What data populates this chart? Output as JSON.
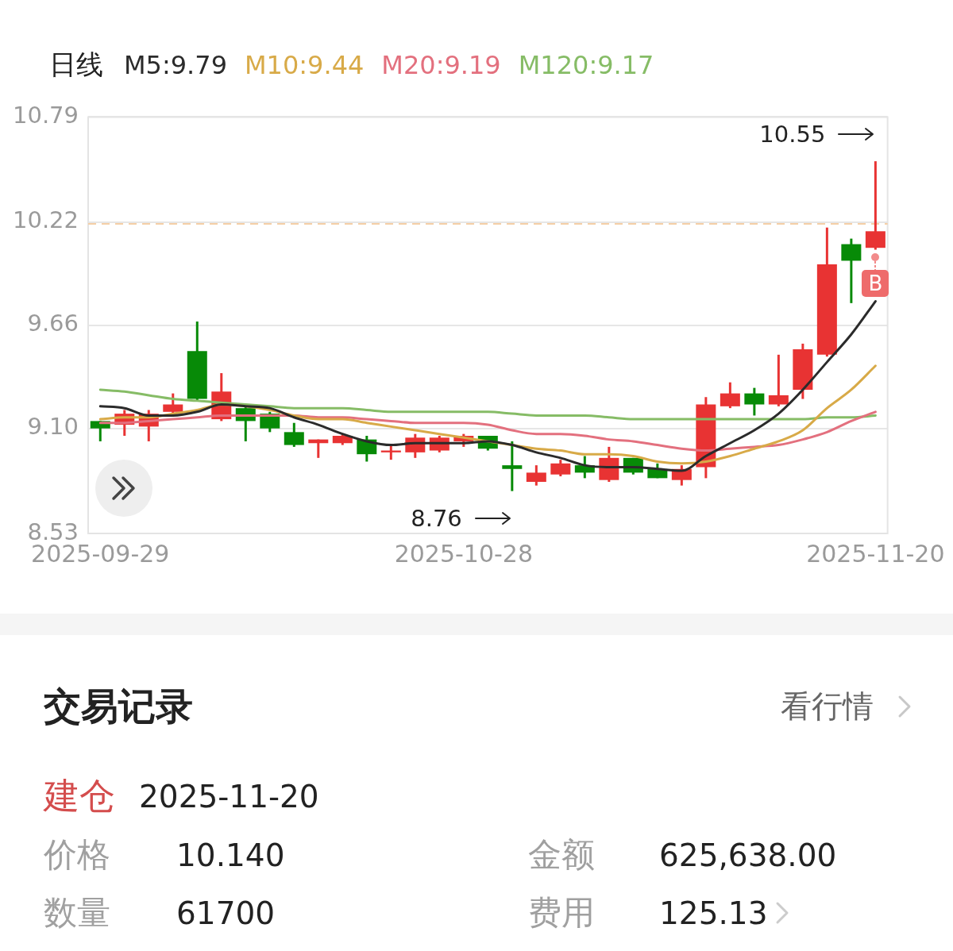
{
  "chart_data": {
    "type": "candlestick",
    "legend_title": "日线",
    "categories": [
      "2025-09-29",
      null,
      null,
      null,
      null,
      null,
      null,
      null,
      null,
      null,
      null,
      null,
      null,
      null,
      null,
      "2025-10-28",
      null,
      null,
      null,
      null,
      null,
      null,
      null,
      null,
      null,
      null,
      null,
      null,
      null,
      null,
      null,
      null,
      "2025-11-20"
    ],
    "ohlc": [
      [
        9.14,
        9.14,
        9.03,
        9.1
      ],
      [
        9.12,
        9.2,
        9.06,
        9.18
      ],
      [
        9.11,
        9.2,
        9.03,
        9.18
      ],
      [
        9.19,
        9.29,
        9.18,
        9.23
      ],
      [
        9.52,
        9.68,
        9.25,
        9.26
      ],
      [
        9.15,
        9.4,
        9.14,
        9.3
      ],
      [
        9.21,
        9.23,
        9.03,
        9.14
      ],
      [
        9.18,
        9.19,
        9.08,
        9.1
      ],
      [
        9.08,
        9.13,
        9.0,
        9.01
      ],
      [
        9.02,
        9.04,
        8.94,
        9.04
      ],
      [
        9.02,
        9.07,
        9.01,
        9.06
      ],
      [
        9.04,
        9.06,
        8.92,
        8.96
      ],
      [
        8.97,
        9.01,
        8.93,
        8.98
      ],
      [
        8.97,
        9.07,
        8.94,
        9.05
      ],
      [
        8.98,
        9.06,
        8.97,
        9.05
      ],
      [
        9.03,
        9.07,
        9.0,
        9.06
      ],
      [
        9.06,
        9.06,
        8.98,
        8.99
      ],
      [
        8.9,
        9.03,
        8.76,
        8.88
      ],
      [
        8.81,
        8.9,
        8.79,
        8.86
      ],
      [
        8.85,
        8.93,
        8.84,
        8.91
      ],
      [
        8.9,
        8.95,
        8.83,
        8.86
      ],
      [
        8.82,
        9.0,
        8.81,
        8.94
      ],
      [
        8.94,
        8.94,
        8.85,
        8.86
      ],
      [
        8.88,
        8.91,
        8.83,
        8.83
      ],
      [
        8.82,
        8.9,
        8.79,
        8.88
      ],
      [
        8.89,
        9.27,
        8.83,
        9.23
      ],
      [
        9.22,
        9.35,
        9.21,
        9.29
      ],
      [
        9.29,
        9.32,
        9.17,
        9.23
      ],
      [
        9.23,
        9.5,
        9.22,
        9.28
      ],
      [
        9.31,
        9.56,
        9.26,
        9.53
      ],
      [
        9.5,
        10.19,
        9.49,
        9.99
      ],
      [
        10.1,
        10.13,
        9.78,
        10.01
      ],
      [
        10.08,
        10.55,
        10.07,
        10.17
      ]
    ],
    "colors": [
      "#078a07",
      "#e83333",
      "#e83333",
      "#e83333",
      "#078a07",
      "#e83333",
      "#078a07",
      "#078a07",
      "#078a07",
      "#e83333",
      "#e83333",
      "#078a07",
      "#e83333",
      "#e83333",
      "#e83333",
      "#e83333",
      "#078a07",
      "#078a07",
      "#e83333",
      "#e83333",
      "#078a07",
      "#e83333",
      "#078a07",
      "#078a07",
      "#e83333",
      "#e83333",
      "#e83333",
      "#078a07",
      "#e83333",
      "#e83333",
      "#e83333",
      "#078a07",
      "#e83333"
    ],
    "series": [
      {
        "name": "M5:9.79",
        "type": "line",
        "color": "#2b2b2b",
        "values": [
          9.22,
          9.21,
          9.17,
          9.17,
          9.19,
          9.23,
          9.22,
          9.21,
          9.16,
          9.12,
          9.07,
          9.03,
          9.01,
          9.02,
          9.02,
          9.02,
          9.03,
          9.01,
          8.97,
          8.94,
          8.9,
          8.89,
          8.89,
          8.88,
          8.87,
          8.95,
          9.02,
          9.09,
          9.18,
          9.31,
          9.46,
          9.61,
          9.79
        ]
      },
      {
        "name": "M10:9.44",
        "type": "line",
        "color": "#d8aa48",
        "values": [
          9.15,
          9.16,
          9.16,
          9.18,
          9.2,
          9.23,
          9.22,
          9.2,
          9.17,
          9.15,
          9.15,
          9.13,
          9.11,
          9.09,
          9.07,
          9.05,
          9.03,
          9.01,
          8.99,
          8.98,
          8.96,
          8.96,
          8.95,
          8.92,
          8.91,
          8.92,
          8.95,
          8.99,
          9.03,
          9.09,
          9.21,
          9.31,
          9.44
        ]
      },
      {
        "name": "M20:9.19",
        "type": "line",
        "color": "#e3707e",
        "values": [
          9.13,
          9.13,
          9.14,
          9.15,
          9.16,
          9.17,
          9.17,
          9.17,
          9.17,
          9.16,
          9.16,
          9.15,
          9.14,
          9.13,
          9.13,
          9.13,
          9.12,
          9.09,
          9.07,
          9.07,
          9.06,
          9.04,
          9.03,
          9.01,
          8.99,
          8.98,
          8.99,
          9.0,
          9.01,
          9.04,
          9.08,
          9.14,
          9.19
        ]
      },
      {
        "name": "M120:9.17",
        "type": "line",
        "color": "#86bc66",
        "values": [
          9.31,
          9.3,
          9.28,
          9.26,
          9.25,
          9.24,
          9.23,
          9.22,
          9.21,
          9.21,
          9.21,
          9.2,
          9.19,
          9.19,
          9.19,
          9.19,
          9.19,
          9.18,
          9.17,
          9.17,
          9.17,
          9.16,
          9.15,
          9.15,
          9.15,
          9.15,
          9.15,
          9.15,
          9.15,
          9.15,
          9.16,
          9.16,
          9.17
        ]
      }
    ],
    "ylim": [
      8.53,
      10.79
    ],
    "yticks": [
      8.53,
      {
        "value": 9.1,
        "label": "9.10"
      },
      9.66,
      10.22,
      10.79
    ],
    "grid": "y",
    "legend": "top left",
    "ref_lines": [
      {
        "axis": "y",
        "value": 10.21,
        "color": "#f5cfa6",
        "line_style": "dashed"
      }
    ],
    "annotations": [
      {
        "text": "10.55",
        "x": "2025-11-20",
        "y": 10.55
      },
      "8.76",
      {
        "text": "B",
        "x": "2025-11-20"
      },
      "交易记录",
      "看行情",
      "建仓",
      "2025-11-20",
      "价格",
      "10.140",
      "金额",
      "625,638.00",
      "数量",
      "61700",
      "费用",
      "125.13"
    ]
  }
}
